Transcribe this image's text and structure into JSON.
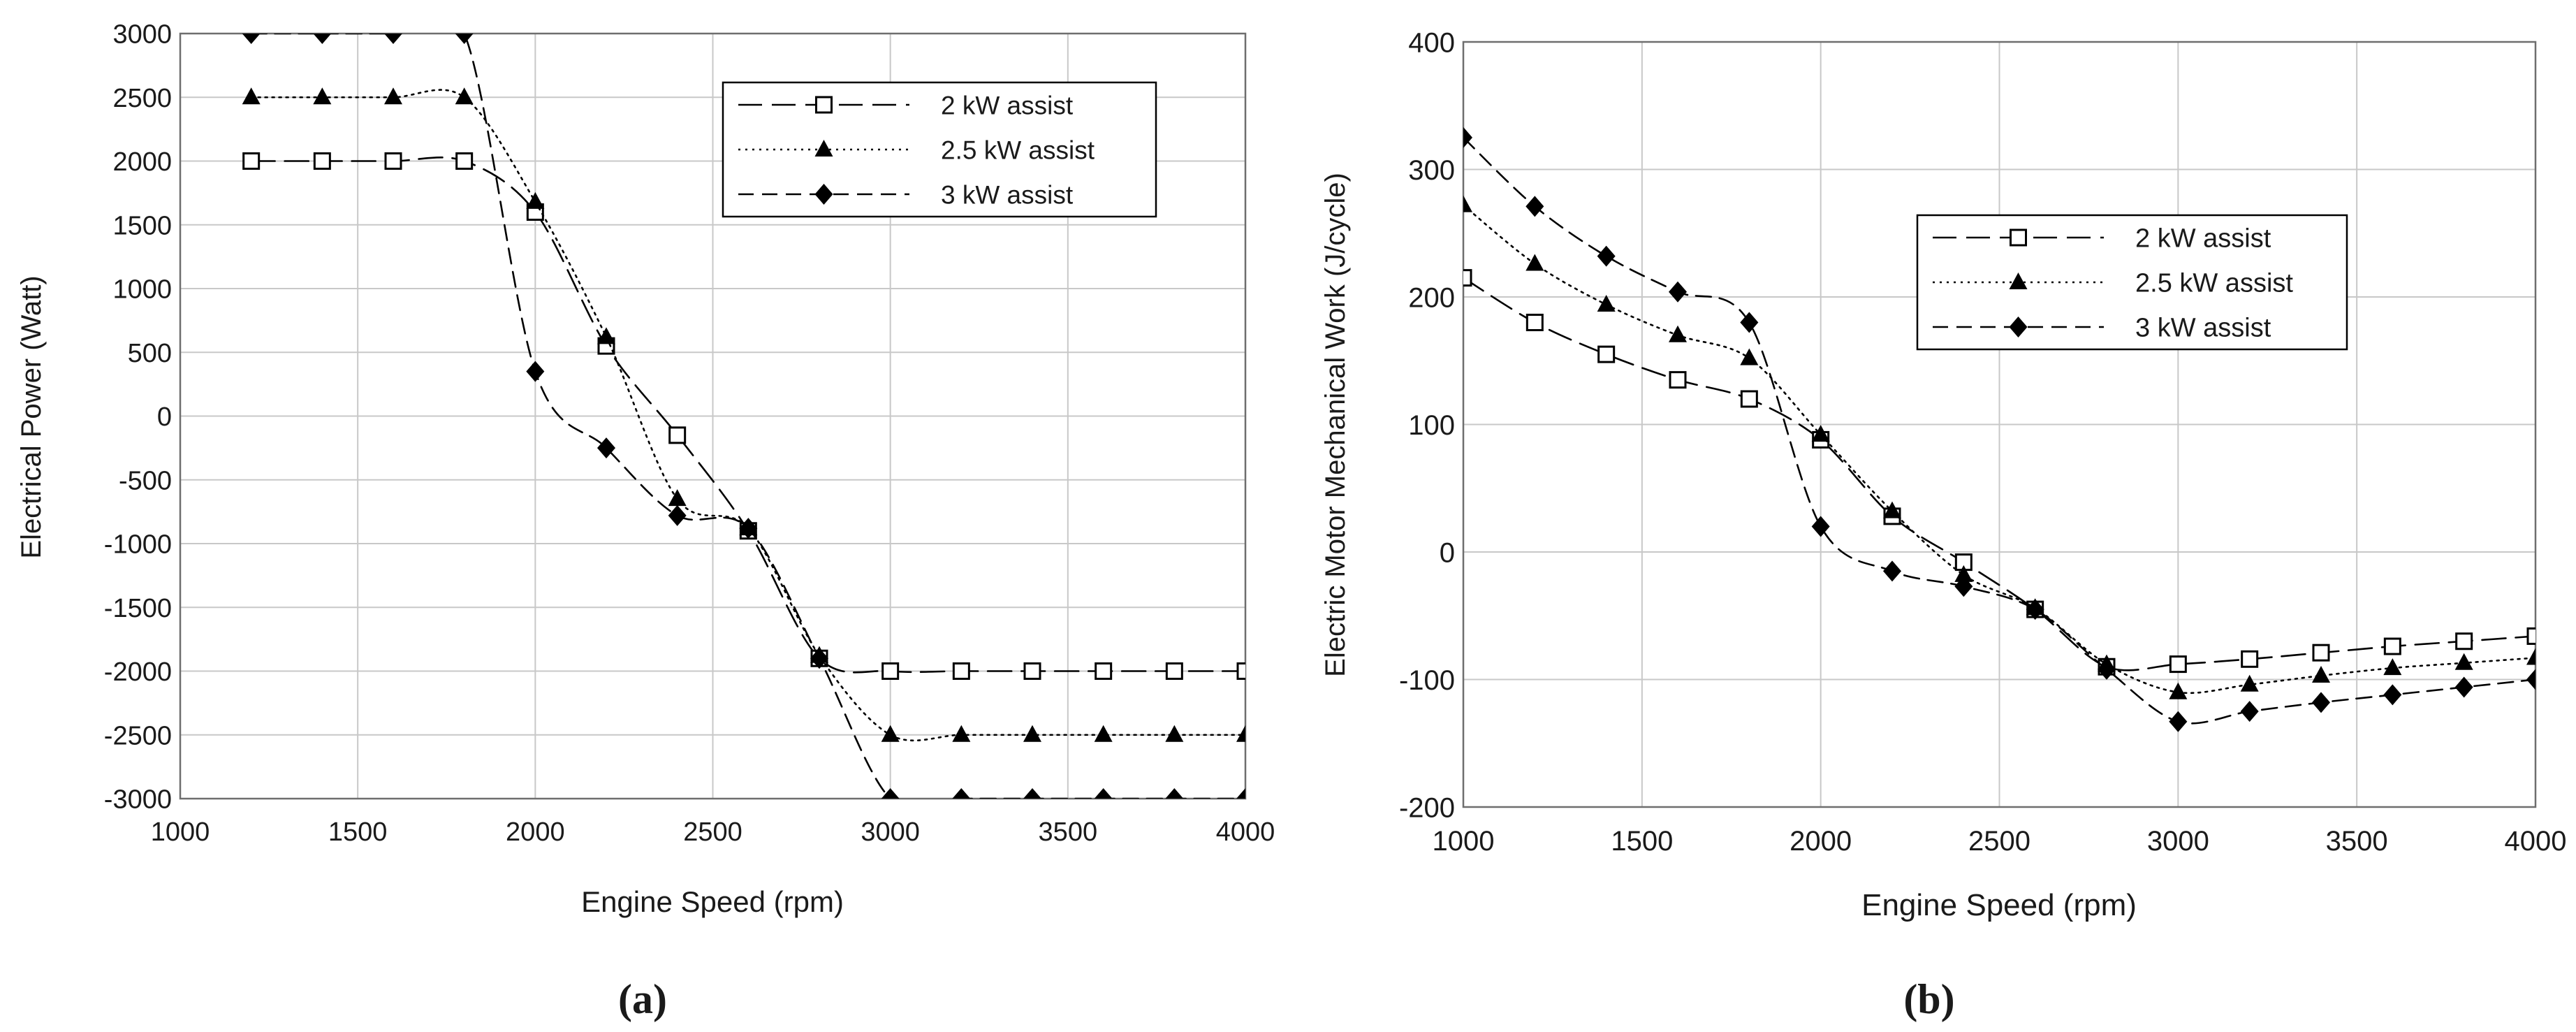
{
  "chart_data": [
    {
      "type": "line",
      "panel_label": "(a)",
      "title": "",
      "xlabel": "Engine Speed (rpm)",
      "ylabel": "Electrical Power  (Watt)",
      "xlim": [
        1000,
        4000
      ],
      "ylim": [
        -3000,
        3000
      ],
      "xticks": [
        1000,
        1500,
        2000,
        2500,
        3000,
        3500,
        4000
      ],
      "yticks": [
        3000,
        2500,
        2000,
        1500,
        1000,
        500,
        0,
        -500,
        -1000,
        -1500,
        -2000,
        -2500,
        -3000
      ],
      "grid": true,
      "legend_position": "top-right",
      "x": [
        1200,
        1400,
        1600,
        1800,
        2000,
        2200,
        2400,
        2600,
        2800,
        3000,
        3200,
        3400,
        3600,
        3800,
        4000
      ],
      "series": [
        {
          "name": "2 kW assist",
          "dash": "long-dash",
          "marker": "open-square",
          "values": [
            2000,
            2000,
            2000,
            2000,
            1600,
            550,
            -150,
            -900,
            -1900,
            -2000,
            -2000,
            -2000,
            -2000,
            -2000,
            -2000
          ]
        },
        {
          "name": "2.5 kW assist",
          "dash": "dotted",
          "marker": "triangle",
          "values": [
            2500,
            2500,
            2500,
            2500,
            1680,
            620,
            -650,
            -880,
            -1880,
            -2500,
            -2500,
            -2500,
            -2500,
            -2500,
            -2500
          ]
        },
        {
          "name": "3 kW assist",
          "dash": "dashed",
          "marker": "diamond",
          "values": [
            3000,
            3000,
            3000,
            3000,
            350,
            -250,
            -780,
            -880,
            -1900,
            -3000,
            -3000,
            -3000,
            -3000,
            -3000,
            -3000
          ]
        }
      ]
    },
    {
      "type": "line",
      "panel_label": "(b)",
      "title": "",
      "xlabel": "Engine Speed (rpm)",
      "ylabel": "Electric Motor Mechanical Work  (J/cycle)",
      "xlim": [
        1000,
        4000
      ],
      "ylim": [
        -200,
        400
      ],
      "xticks": [
        1000,
        1500,
        2000,
        2500,
        3000,
        3500,
        4000
      ],
      "yticks": [
        400,
        300,
        200,
        100,
        0,
        -100,
        -200
      ],
      "grid": true,
      "legend_position": "top-right",
      "x": [
        1000,
        1200,
        1400,
        1600,
        1800,
        2000,
        2200,
        2400,
        2600,
        2800,
        3000,
        3200,
        3400,
        3600,
        3800,
        4000
      ],
      "series": [
        {
          "name": "2 kW assist",
          "dash": "long-dash",
          "marker": "open-square",
          "values": [
            215,
            180,
            155,
            135,
            120,
            88,
            28,
            -8,
            -45,
            -90,
            -88,
            -84,
            -79,
            -74,
            -70,
            -66
          ]
        },
        {
          "name": "2.5 kW assist",
          "dash": "dotted",
          "marker": "triangle",
          "values": [
            272,
            226,
            194,
            170,
            152,
            92,
            32,
            -18,
            -44,
            -88,
            -110,
            -104,
            -97,
            -91,
            -87,
            -83
          ]
        },
        {
          "name": "3 kW assist",
          "dash": "dashed",
          "marker": "diamond",
          "values": [
            325,
            271,
            232,
            204,
            180,
            20,
            -15,
            -27,
            -45,
            -92,
            -133,
            -125,
            -118,
            -112,
            -106,
            -100
          ]
        }
      ]
    }
  ]
}
